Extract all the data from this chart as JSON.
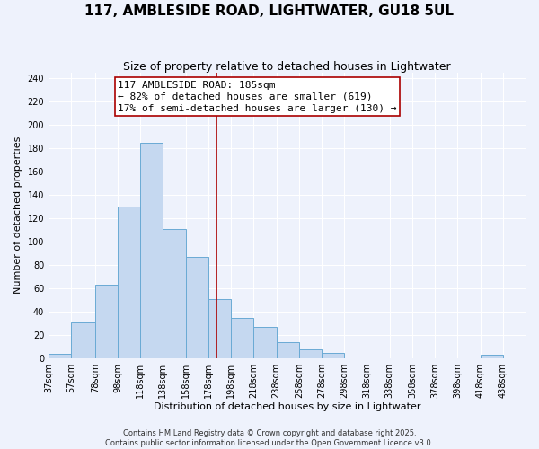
{
  "title": "117, AMBLESIDE ROAD, LIGHTWATER, GU18 5UL",
  "subtitle": "Size of property relative to detached houses in Lightwater",
  "xlabel": "Distribution of detached houses by size in Lightwater",
  "ylabel": "Number of detached properties",
  "footer_lines": [
    "Contains HM Land Registry data © Crown copyright and database right 2025.",
    "Contains public sector information licensed under the Open Government Licence v3.0."
  ],
  "bin_labels": [
    "37sqm",
    "57sqm",
    "78sqm",
    "98sqm",
    "118sqm",
    "138sqm",
    "158sqm",
    "178sqm",
    "198sqm",
    "218sqm",
    "238sqm",
    "258sqm",
    "278sqm",
    "298sqm",
    "318sqm",
    "338sqm",
    "358sqm",
    "378sqm",
    "398sqm",
    "418sqm",
    "438sqm"
  ],
  "bin_edges": [
    37,
    57,
    78,
    98,
    118,
    138,
    158,
    178,
    198,
    218,
    238,
    258,
    278,
    298,
    318,
    338,
    358,
    378,
    398,
    418,
    438,
    458
  ],
  "bar_counts": [
    4,
    31,
    63,
    130,
    185,
    111,
    87,
    51,
    35,
    27,
    14,
    8,
    5,
    0,
    0,
    0,
    0,
    0,
    0,
    3,
    0
  ],
  "bar_color": "#c5d8f0",
  "bar_edge_color": "#6aaad4",
  "vline_x": 185,
  "vline_color": "#aa0000",
  "annotation_title": "117 AMBLESIDE ROAD: 185sqm",
  "annotation_line1": "← 82% of detached houses are smaller (619)",
  "annotation_line2": "17% of semi-detached houses are larger (130) →",
  "annotation_box_edge_color": "#aa0000",
  "annotation_box_face_color": "#ffffff",
  "ylim": [
    0,
    245
  ],
  "yticks": [
    0,
    20,
    40,
    60,
    80,
    100,
    120,
    140,
    160,
    180,
    200,
    220,
    240
  ],
  "background_color": "#eef2fc",
  "grid_color": "#ffffff",
  "title_fontsize": 11,
  "subtitle_fontsize": 9,
  "axis_label_fontsize": 8,
  "tick_fontsize": 7,
  "annotation_fontsize": 8,
  "footer_fontsize": 6
}
